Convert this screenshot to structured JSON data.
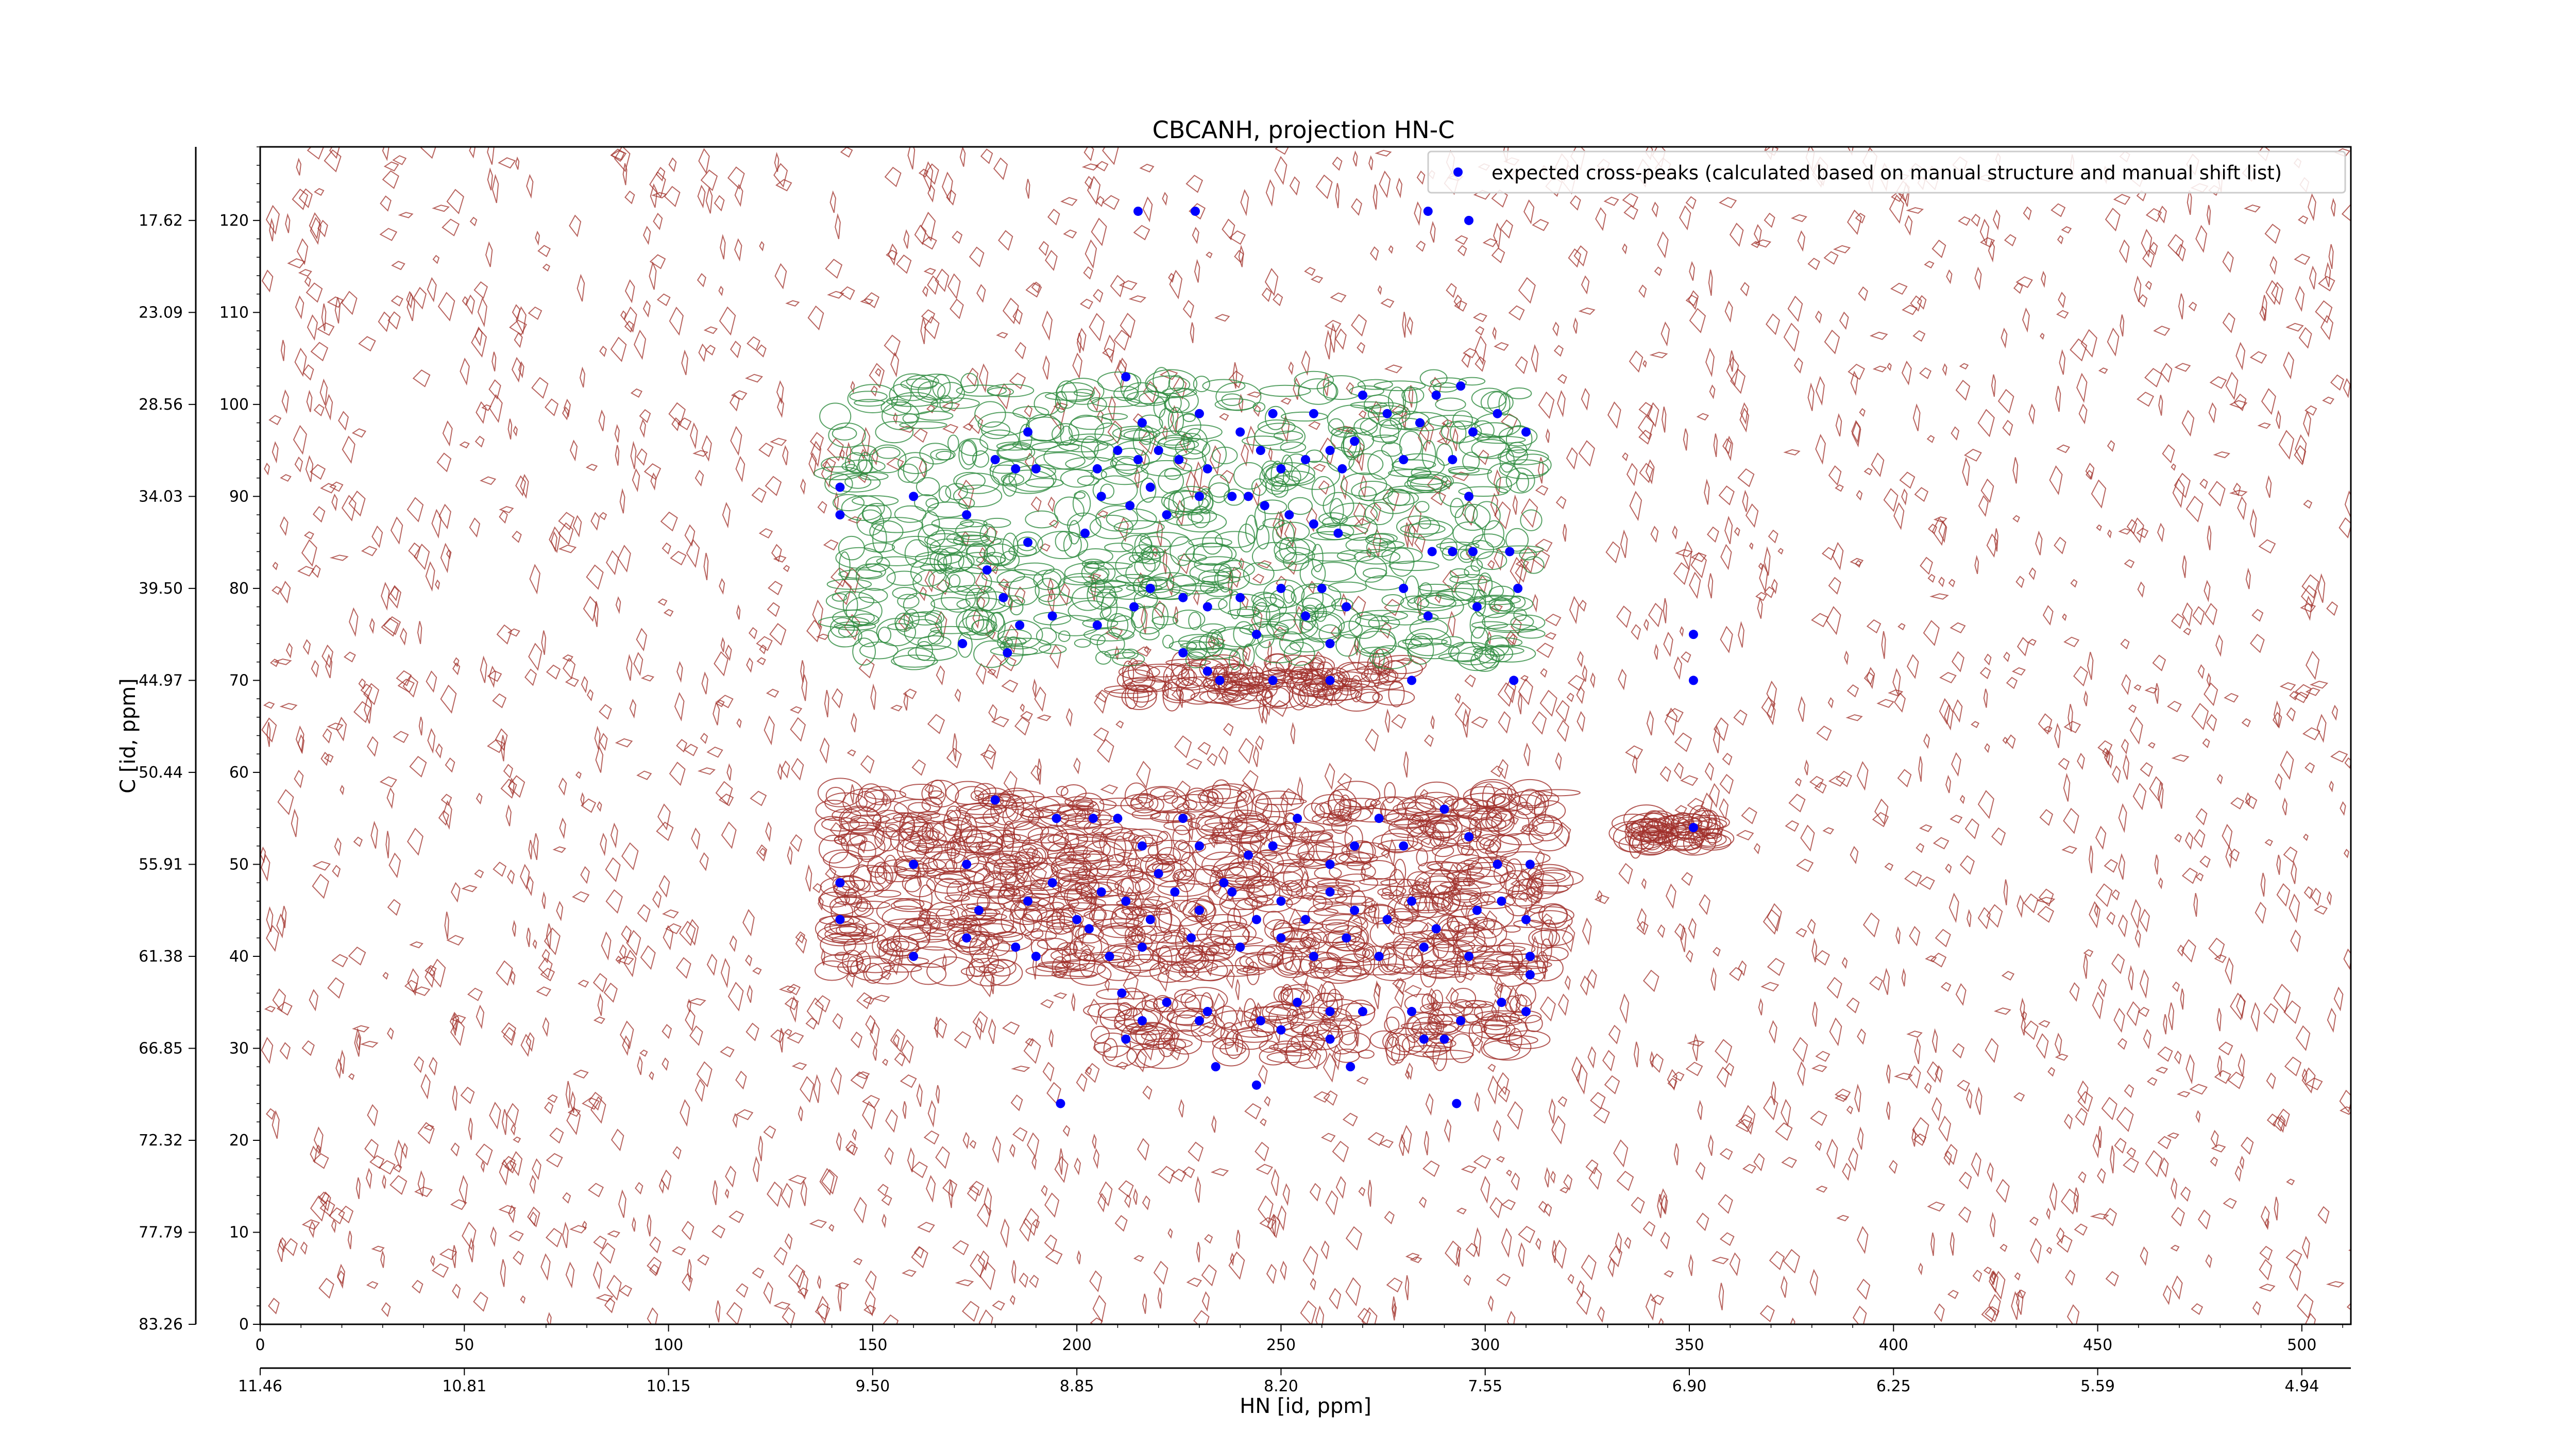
{
  "chart_data": {
    "type": "scatter",
    "title": "CBCANH, projection HN-C",
    "xlabel": "HN [id, ppm]",
    "ylabel": "C [id, ppm]",
    "xlim": [
      0,
      512
    ],
    "ylim": [
      0,
      128
    ],
    "x_ticks": [
      0,
      50,
      100,
      150,
      200,
      250,
      300,
      350,
      400,
      450,
      500
    ],
    "y_ticks": [
      0,
      10,
      20,
      30,
      40,
      50,
      60,
      70,
      80,
      90,
      100,
      110,
      120
    ],
    "x_ppm_ticks": [
      "11.46",
      "10.81",
      "10.15",
      "9.50",
      "8.85",
      "8.20",
      "7.55",
      "6.90",
      "6.25",
      "5.59",
      "4.94"
    ],
    "y_ppm_ticks": [
      "83.26",
      "77.79",
      "72.32",
      "66.85",
      "61.38",
      "55.91",
      "50.44",
      "44.97",
      "39.50",
      "34.03",
      "28.56",
      "23.09",
      "17.62"
    ],
    "legend": {
      "label": "expected cross-peaks (calculated based on manual structure and manual shift list)",
      "position": "top-right"
    },
    "colors": {
      "peaks": "#0000ff",
      "positive_contours": "#a0302a",
      "negative_contours": "#2e8b3e",
      "axes": "#000000"
    },
    "series": [
      {
        "name": "expected cross-peaks (calculated based on manual structure and manual shift list)",
        "points": [
          [
            215,
            121
          ],
          [
            229,
            121
          ],
          [
            286,
            121
          ],
          [
            296,
            120
          ],
          [
            212,
            103
          ],
          [
            216,
            98
          ],
          [
            220,
            95
          ],
          [
            230,
            99
          ],
          [
            240,
            97
          ],
          [
            248,
            99
          ],
          [
            258,
            99
          ],
          [
            262,
            95
          ],
          [
            270,
            101
          ],
          [
            276,
            99
          ],
          [
            284,
            98
          ],
          [
            288,
            101
          ],
          [
            294,
            102
          ],
          [
            297,
            97
          ],
          [
            303,
            99
          ],
          [
            310,
            97
          ],
          [
            180,
            94
          ],
          [
            185,
            93
          ],
          [
            188,
            97
          ],
          [
            190,
            93
          ],
          [
            205,
            93
          ],
          [
            210,
            95
          ],
          [
            215,
            94
          ],
          [
            225,
            94
          ],
          [
            232,
            93
          ],
          [
            245,
            95
          ],
          [
            250,
            93
          ],
          [
            256,
            94
          ],
          [
            265,
            93
          ],
          [
            268,
            96
          ],
          [
            280,
            94
          ],
          [
            292,
            94
          ],
          [
            296,
            90
          ],
          [
            142,
            91
          ],
          [
            142,
            88
          ],
          [
            160,
            90
          ],
          [
            173,
            88
          ],
          [
            188,
            85
          ],
          [
            202,
            86
          ],
          [
            206,
            90
          ],
          [
            213,
            89
          ],
          [
            218,
            91
          ],
          [
            222,
            88
          ],
          [
            230,
            90
          ],
          [
            238,
            90
          ],
          [
            242,
            90
          ],
          [
            246,
            89
          ],
          [
            252,
            88
          ],
          [
            258,
            87
          ],
          [
            264,
            86
          ],
          [
            287,
            84
          ],
          [
            292,
            84
          ],
          [
            297,
            84
          ],
          [
            306,
            84
          ],
          [
            178,
            82
          ],
          [
            182,
            79
          ],
          [
            186,
            76
          ],
          [
            194,
            77
          ],
          [
            205,
            76
          ],
          [
            214,
            78
          ],
          [
            218,
            80
          ],
          [
            226,
            79
          ],
          [
            232,
            78
          ],
          [
            240,
            79
          ],
          [
            250,
            80
          ],
          [
            256,
            77
          ],
          [
            260,
            80
          ],
          [
            266,
            78
          ],
          [
            280,
            80
          ],
          [
            286,
            77
          ],
          [
            298,
            78
          ],
          [
            308,
            80
          ],
          [
            172,
            74
          ],
          [
            183,
            73
          ],
          [
            226,
            73
          ],
          [
            232,
            71
          ],
          [
            244,
            75
          ],
          [
            262,
            74
          ],
          [
            351,
            75
          ],
          [
            235,
            70
          ],
          [
            248,
            70
          ],
          [
            262,
            70
          ],
          [
            282,
            70
          ],
          [
            307,
            70
          ],
          [
            351,
            70
          ],
          [
            180,
            57
          ],
          [
            195,
            55
          ],
          [
            204,
            55
          ],
          [
            210,
            55
          ],
          [
            216,
            52
          ],
          [
            220,
            49
          ],
          [
            226,
            55
          ],
          [
            230,
            52
          ],
          [
            236,
            48
          ],
          [
            242,
            51
          ],
          [
            248,
            52
          ],
          [
            254,
            55
          ],
          [
            262,
            50
          ],
          [
            268,
            52
          ],
          [
            274,
            55
          ],
          [
            280,
            52
          ],
          [
            290,
            56
          ],
          [
            296,
            53
          ],
          [
            303,
            50
          ],
          [
            311,
            50
          ],
          [
            351,
            54
          ],
          [
            142,
            48
          ],
          [
            142,
            44
          ],
          [
            160,
            50
          ],
          [
            173,
            50
          ],
          [
            176,
            45
          ],
          [
            188,
            46
          ],
          [
            194,
            48
          ],
          [
            200,
            44
          ],
          [
            206,
            47
          ],
          [
            212,
            46
          ],
          [
            218,
            44
          ],
          [
            224,
            47
          ],
          [
            230,
            45
          ],
          [
            238,
            47
          ],
          [
            244,
            44
          ],
          [
            250,
            46
          ],
          [
            256,
            44
          ],
          [
            262,
            47
          ],
          [
            268,
            45
          ],
          [
            276,
            44
          ],
          [
            282,
            46
          ],
          [
            288,
            43
          ],
          [
            298,
            45
          ],
          [
            304,
            46
          ],
          [
            310,
            44
          ],
          [
            160,
            40
          ],
          [
            173,
            42
          ],
          [
            185,
            41
          ],
          [
            190,
            40
          ],
          [
            203,
            43
          ],
          [
            208,
            40
          ],
          [
            216,
            41
          ],
          [
            228,
            42
          ],
          [
            240,
            41
          ],
          [
            250,
            42
          ],
          [
            258,
            40
          ],
          [
            266,
            42
          ],
          [
            274,
            40
          ],
          [
            285,
            41
          ],
          [
            296,
            40
          ],
          [
            311,
            40
          ],
          [
            311,
            38
          ],
          [
            211,
            36
          ],
          [
            216,
            33
          ],
          [
            222,
            35
          ],
          [
            232,
            34
          ],
          [
            245,
            33
          ],
          [
            254,
            35
          ],
          [
            262,
            34
          ],
          [
            270,
            34
          ],
          [
            282,
            34
          ],
          [
            294,
            33
          ],
          [
            304,
            35
          ],
          [
            310,
            34
          ],
          [
            212,
            31
          ],
          [
            230,
            33
          ],
          [
            250,
            32
          ],
          [
            262,
            31
          ],
          [
            285,
            31
          ],
          [
            290,
            31
          ],
          [
            234,
            28
          ],
          [
            244,
            26
          ],
          [
            267,
            28
          ],
          [
            196,
            24
          ],
          [
            293,
            24
          ]
        ]
      }
    ]
  }
}
